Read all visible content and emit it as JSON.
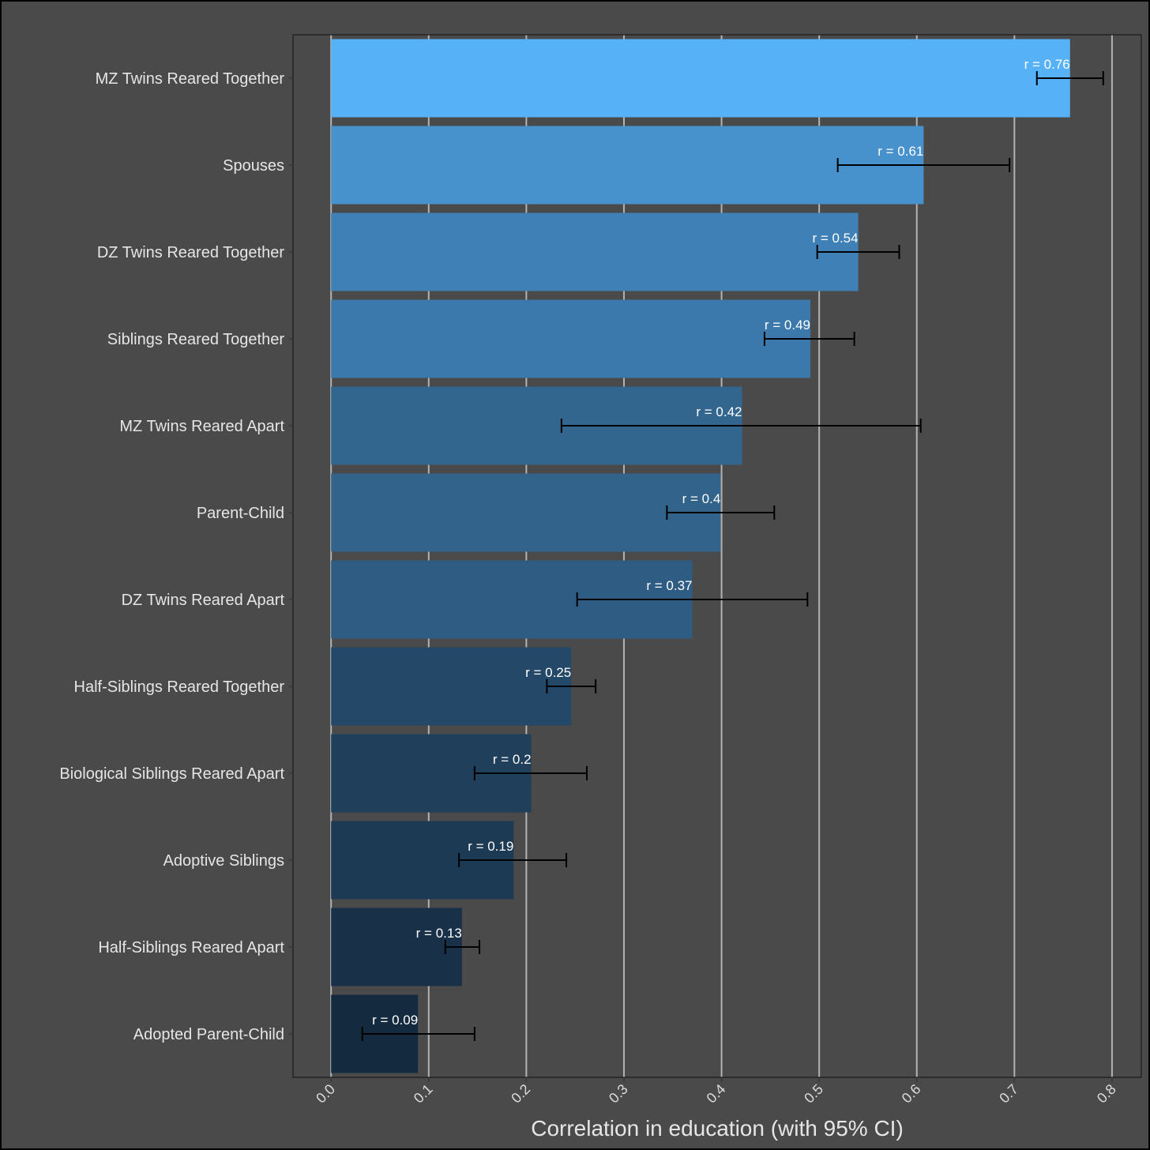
{
  "chart_data": {
    "type": "bar",
    "orientation": "horizontal",
    "categories": [
      "MZ Twins Reared Together",
      "Spouses",
      "DZ Twins Reared Together",
      "Siblings Reared Together",
      "MZ Twins Reared Apart",
      "Parent-Child",
      "DZ Twins Reared Apart",
      "Half-Siblings Reared Together",
      "Biological Siblings Reared Apart",
      "Adoptive Siblings",
      "Half-Siblings Reared Apart",
      "Adopted Parent-Child"
    ],
    "values": [
      0.757,
      0.607,
      0.54,
      0.491,
      0.421,
      0.399,
      0.37,
      0.246,
      0.205,
      0.187,
      0.134,
      0.089
    ],
    "ci_low": [
      0.723,
      0.519,
      0.498,
      0.444,
      0.236,
      0.344,
      0.252,
      0.221,
      0.147,
      0.131,
      0.117,
      0.032
    ],
    "ci_high": [
      0.791,
      0.695,
      0.582,
      0.536,
      0.604,
      0.454,
      0.488,
      0.271,
      0.262,
      0.241,
      0.152,
      0.147
    ],
    "data_labels": [
      "r = 0.76",
      "r = 0.61",
      "r = 0.54",
      "r = 0.49",
      "r = 0.42",
      "r = 0.4",
      "r = 0.37",
      "r = 0.25",
      "r = 0.2",
      "r = 0.19",
      "r = 0.13",
      "r = 0.09"
    ],
    "bar_colors": [
      "#56b1f7",
      "#4791cc",
      "#3f80b7",
      "#3b78ab",
      "#33668f",
      "#31638b",
      "#2e5c82",
      "#234868",
      "#1f3f5b",
      "#1d3a55",
      "#183048",
      "#142a3e"
    ],
    "xlabel": "Correlation in education (with 95% CI)",
    "x_ticks": [
      0.0,
      0.1,
      0.2,
      0.3,
      0.4,
      0.5,
      0.6,
      0.7,
      0.8
    ],
    "x_tick_labels": [
      "0.0",
      "0.1",
      "0.2",
      "0.3",
      "0.4",
      "0.5",
      "0.6",
      "0.7",
      "0.8"
    ],
    "xlim": [
      -0.039,
      0.83
    ],
    "grid": "vertical major",
    "legend": "none",
    "background_color": "#4a4a4a",
    "gridline_color": "#b3b3b3"
  }
}
